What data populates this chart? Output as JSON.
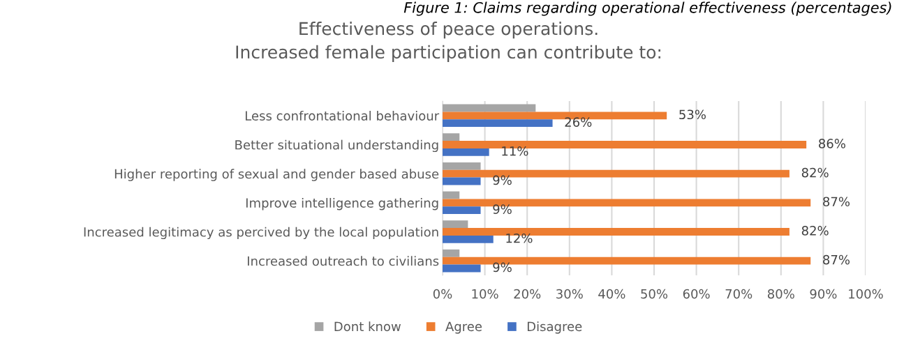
{
  "chart_data": {
    "type": "bar",
    "orientation": "horizontal",
    "title": "Effectiveness of peace operations.\nIncreased female participation can contribute to:",
    "annotations": [
      "Figure 1: Claims regarding operational effectiveness (percentages)"
    ],
    "categories": [
      "Less confrontational behaviour",
      "Better situational understanding",
      "Higher reporting of sexual and gender based abuse",
      "Improve intelligence gathering",
      "Increased legitimacy as percived by the local population",
      "Increased outreach to civilians"
    ],
    "series": [
      {
        "name": "Dont know",
        "color": "#a5a5a5",
        "values": [
          22,
          4,
          9,
          4,
          6,
          4
        ]
      },
      {
        "name": "Agree",
        "color": "#ed7d31",
        "values": [
          53,
          86,
          82,
          87,
          82,
          87
        ],
        "value_labels": [
          "53%",
          "86%",
          "82%",
          "87%",
          "82%",
          "87%"
        ]
      },
      {
        "name": "Disagree",
        "color": "#4472c4",
        "values": [
          26,
          11,
          9,
          9,
          12,
          9
        ],
        "value_labels": [
          "26%",
          "11%",
          "9%",
          "9%",
          "12%",
          "9%"
        ]
      }
    ],
    "xlim": [
      0,
      100
    ],
    "xticks": [
      {
        "value": 0,
        "label": "0%"
      },
      {
        "value": 10,
        "label": "10%"
      },
      {
        "value": 20,
        "label": "20%"
      },
      {
        "value": 30,
        "label": "30%"
      },
      {
        "value": 40,
        "label": "40%"
      },
      {
        "value": 50,
        "label": "50%"
      },
      {
        "value": 60,
        "label": "60%"
      },
      {
        "value": 70,
        "label": "70%"
      },
      {
        "value": 80,
        "label": "80%"
      },
      {
        "value": 90,
        "label": "90%"
      },
      {
        "value": 100,
        "label": "100%"
      }
    ],
    "grid": "x",
    "legend": "bottom"
  }
}
